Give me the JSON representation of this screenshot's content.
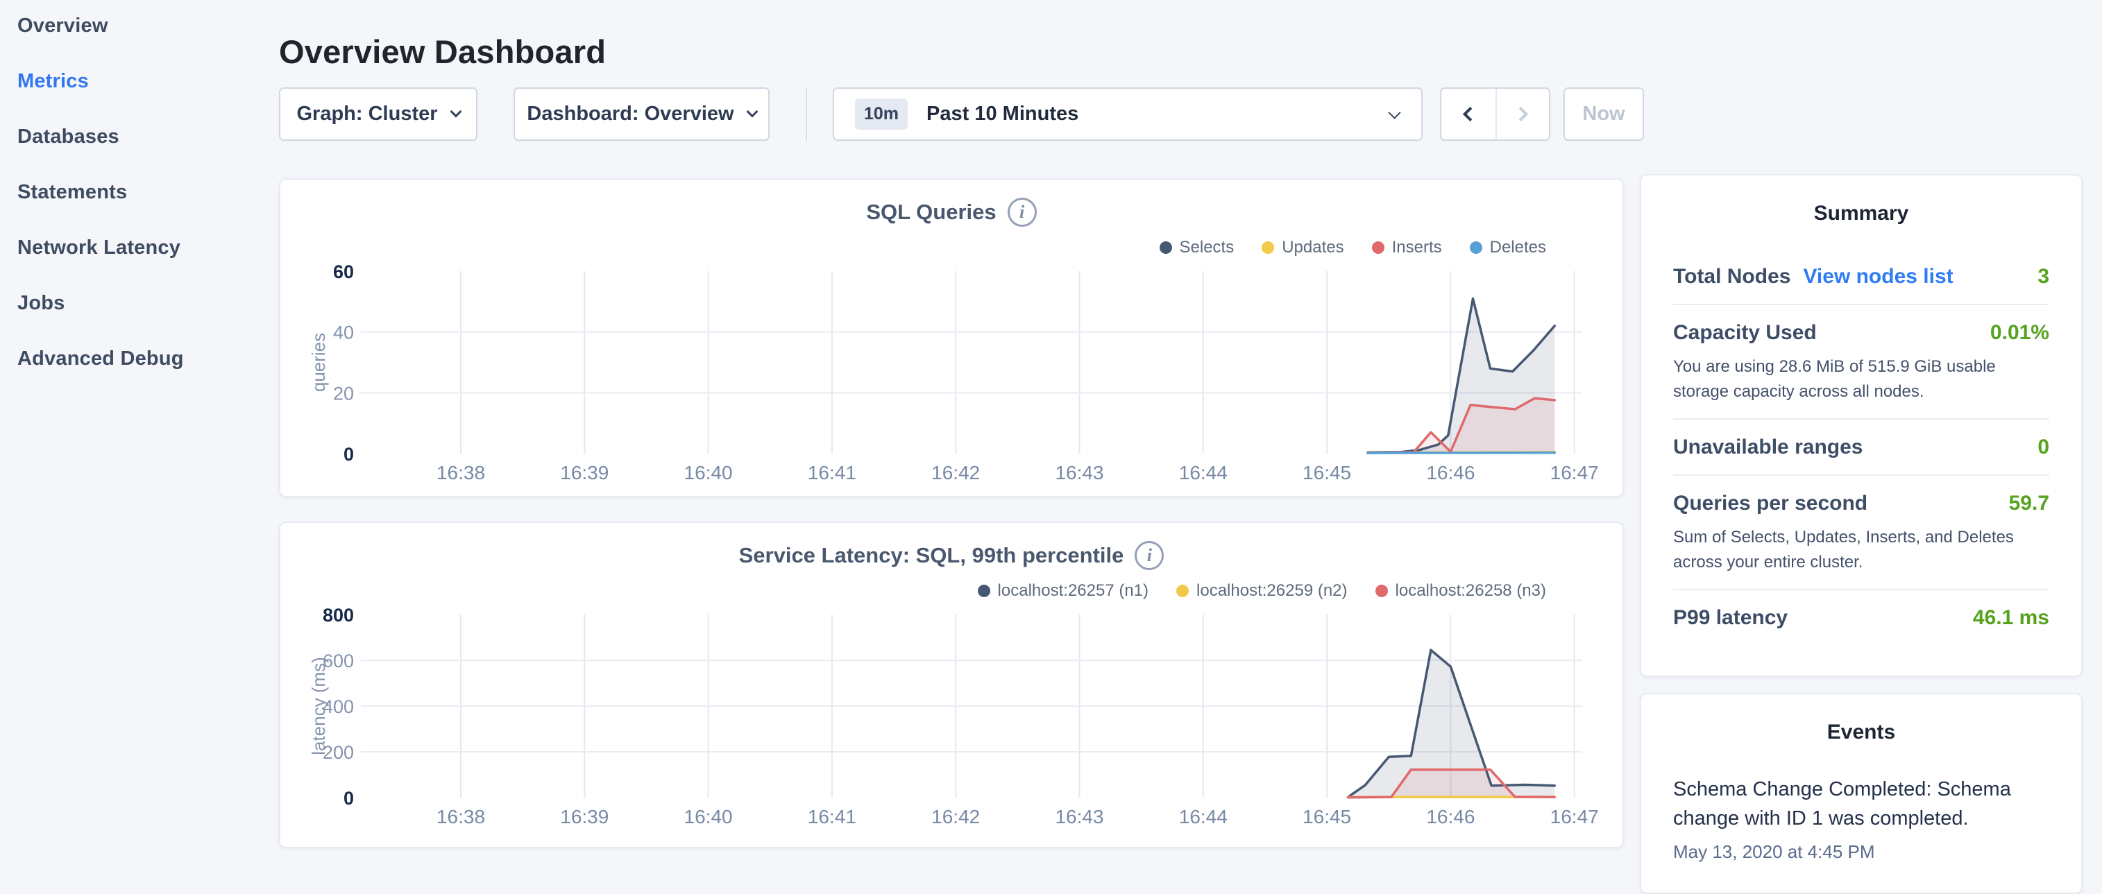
{
  "sidebar": {
    "items": [
      {
        "label": "Overview",
        "active": false
      },
      {
        "label": "Metrics",
        "active": true
      },
      {
        "label": "Databases",
        "active": false
      },
      {
        "label": "Statements",
        "active": false
      },
      {
        "label": "Network Latency",
        "active": false
      },
      {
        "label": "Jobs",
        "active": false
      },
      {
        "label": "Advanced Debug",
        "active": false
      }
    ]
  },
  "header": {
    "title": "Overview Dashboard"
  },
  "controls": {
    "graph_dropdown": "Graph: Cluster",
    "dashboard_dropdown": "Dashboard: Overview",
    "time_badge": "10m",
    "time_label": "Past 10 Minutes",
    "now_label": "Now"
  },
  "summary": {
    "title": "Summary",
    "rows": [
      {
        "label": "Total Nodes",
        "link": "View nodes list",
        "value": "3"
      },
      {
        "label": "Capacity Used",
        "value": "0.01%",
        "description": "You are using 28.6 MiB of 515.9 GiB usable storage capacity across all nodes."
      },
      {
        "label": "Unavailable ranges",
        "value": "0"
      },
      {
        "label": "Queries per second",
        "value": "59.7",
        "description": "Sum of Selects, Updates, Inserts, and Deletes across your entire cluster."
      },
      {
        "label": "P99 latency",
        "value": "46.1 ms"
      }
    ],
    "value_color": "#55a31f",
    "link_color": "#2f7cf5"
  },
  "events": {
    "title": "Events",
    "items": [
      {
        "text": "Schema Change Completed: Schema change with ID 1 was completed.",
        "timestamp": "May 13, 2020 at 4:45 PM"
      }
    ]
  },
  "chart_data": [
    {
      "type": "area",
      "title": "SQL Queries",
      "ylabel": "queries",
      "ylim": [
        0,
        60
      ],
      "y_ticks": [
        0,
        20,
        40,
        60
      ],
      "x_ticks": [
        "16:38",
        "16:39",
        "16:40",
        "16:41",
        "16:42",
        "16:43",
        "16:44",
        "16:45",
        "16:46",
        "16:47"
      ],
      "grid": true,
      "legend_position": "top-right",
      "series": [
        {
          "name": "Selects",
          "color": "#475872",
          "fill": "rgba(71,88,114,0.13)",
          "points": [
            [
              7.33,
              0.4
            ],
            [
              7.6,
              0.5
            ],
            [
              7.75,
              1.2
            ],
            [
              7.9,
              3
            ],
            [
              7.98,
              6
            ],
            [
              8.18,
              51
            ],
            [
              8.32,
              28
            ],
            [
              8.5,
              27
            ],
            [
              8.67,
              34
            ],
            [
              8.84,
              42
            ]
          ]
        },
        {
          "name": "Updates",
          "color": "#f2ca4a",
          "fill": "rgba(242,202,74,0.10)",
          "points": [
            [
              7.33,
              0.3
            ],
            [
              8.84,
              0.5
            ]
          ]
        },
        {
          "name": "Inserts",
          "color": "#e0696b",
          "fill": "rgba(224,105,107,0.12)",
          "points": [
            [
              7.33,
              0.2
            ],
            [
              7.7,
              0.4
            ],
            [
              7.84,
              7
            ],
            [
              8.0,
              0.6
            ],
            [
              8.16,
              16
            ],
            [
              8.33,
              15.3
            ],
            [
              8.52,
              14.6
            ],
            [
              8.68,
              18.2
            ],
            [
              8.84,
              17.6
            ]
          ]
        },
        {
          "name": "Deletes",
          "color": "#57a0d5",
          "fill": "rgba(87,160,213,0.10)",
          "points": [
            [
              7.33,
              0.2
            ],
            [
              8.84,
              0.3
            ]
          ]
        }
      ],
      "x_note": "x values are minutes after 16:38"
    },
    {
      "type": "area",
      "title": "Service Latency: SQL, 99th percentile",
      "ylabel": "latency (ms)",
      "ylim": [
        0,
        800
      ],
      "y_ticks": [
        0,
        200,
        400,
        600,
        800
      ],
      "x_ticks": [
        "16:38",
        "16:39",
        "16:40",
        "16:41",
        "16:42",
        "16:43",
        "16:44",
        "16:45",
        "16:46",
        "16:47"
      ],
      "grid": true,
      "legend_position": "top-right",
      "series": [
        {
          "name": "localhost:26257 (n1)",
          "color": "#475872",
          "fill": "rgba(71,88,114,0.13)",
          "points": [
            [
              7.17,
              2
            ],
            [
              7.31,
              55
            ],
            [
              7.5,
              178
            ],
            [
              7.68,
              182
            ],
            [
              7.84,
              645
            ],
            [
              8.0,
              572
            ],
            [
              8.33,
              52
            ],
            [
              8.6,
              56
            ],
            [
              8.84,
              52
            ]
          ]
        },
        {
          "name": "localhost:26259 (n2)",
          "color": "#f2ca4a",
          "fill": "rgba(242,202,74,0.10)",
          "points": [
            [
              7.17,
              2
            ],
            [
              8.84,
              3
            ]
          ]
        },
        {
          "name": "localhost:26258 (n3)",
          "color": "#e0696b",
          "fill": "rgba(224,105,107,0.12)",
          "points": [
            [
              7.17,
              1
            ],
            [
              7.52,
              2
            ],
            [
              7.68,
              122
            ],
            [
              8.32,
              122
            ],
            [
              8.52,
              3
            ],
            [
              8.84,
              2
            ]
          ]
        }
      ],
      "x_note": "x values are minutes after 16:38"
    }
  ]
}
